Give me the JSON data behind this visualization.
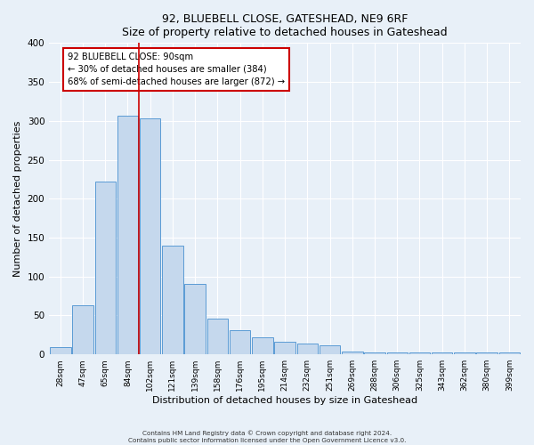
{
  "title1": "92, BLUEBELL CLOSE, GATESHEAD, NE9 6RF",
  "title2": "Size of property relative to detached houses in Gateshead",
  "xlabel": "Distribution of detached houses by size in Gateshead",
  "ylabel": "Number of detached properties",
  "bar_labels": [
    "28sqm",
    "47sqm",
    "65sqm",
    "84sqm",
    "102sqm",
    "121sqm",
    "139sqm",
    "158sqm",
    "176sqm",
    "195sqm",
    "214sqm",
    "232sqm",
    "251sqm",
    "269sqm",
    "288sqm",
    "306sqm",
    "325sqm",
    "343sqm",
    "362sqm",
    "380sqm",
    "399sqm"
  ],
  "bar_values": [
    9,
    63,
    222,
    307,
    303,
    140,
    90,
    46,
    31,
    22,
    16,
    14,
    12,
    4,
    3,
    2,
    3,
    2,
    3,
    2,
    3
  ],
  "bar_color": "#c5d8ed",
  "bar_edge_color": "#5b9bd5",
  "annotation_title": "92 BLUEBELL CLOSE: 90sqm",
  "annotation_line1": "← 30% of detached houses are smaller (384)",
  "annotation_line2": "68% of semi-detached houses are larger (872) →",
  "annotation_box_color": "#ffffff",
  "annotation_box_edge": "#cc0000",
  "vline_color": "#cc0000",
  "vline_x": 3.5,
  "ylim": [
    0,
    400
  ],
  "yticks": [
    0,
    50,
    100,
    150,
    200,
    250,
    300,
    350,
    400
  ],
  "footer1": "Contains HM Land Registry data © Crown copyright and database right 2024.",
  "footer2": "Contains public sector information licensed under the Open Government Licence v3.0.",
  "bg_color": "#e8f0f8",
  "plot_bg_color": "#e8f0f8"
}
